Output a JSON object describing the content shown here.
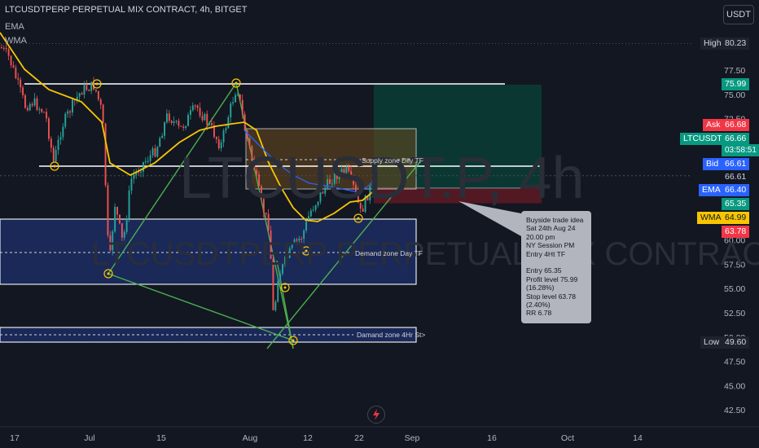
{
  "header": {
    "symbol_line": "LTCUSDTPERP PERPETUAL MIX CONTRACT, 4h, BITGET",
    "indicators": [
      "EMA",
      "WMA"
    ],
    "currency_button": "USDT"
  },
  "watermark": {
    "ticker": "LTCUSDT.P, 4h",
    "description": "LTCUSDTPERP PERPETUAL MIX CONTRACT"
  },
  "price_axis": {
    "ticks": [
      "77.50",
      "75.00",
      "72.50",
      "70.00",
      "67.50",
      "65.00",
      "62.50",
      "60.00",
      "57.50",
      "55.00",
      "52.50",
      "50.00",
      "47.50",
      "45.00",
      "42.50"
    ],
    "labels": {
      "high_label": "High",
      "high_value": "80.23",
      "target_value": "75.99",
      "ask_label": "Ask",
      "ask_value": "66.68",
      "symbol_label": "LTCUSDT.P",
      "last_value": "66.66",
      "countdown": "03:58:51",
      "bid_label": "Bid",
      "bid_value": "66.61",
      "crosshair_value": "66.61",
      "ema_label": "EMA",
      "ema_value": "66.40",
      "entry_value": "65.35",
      "wma_label": "WMA",
      "wma_value": "64.99",
      "stop_value": "63.78",
      "low_label": "Low",
      "low_value": "49.60"
    },
    "colors": {
      "ask": "#f23645",
      "last": "#089981",
      "bid": "#2962ff",
      "ema": "#2962ff",
      "wma": "#f7c600",
      "entry": "#089981",
      "stop": "#f23645",
      "target": "#089981",
      "high_low": "#1e222d"
    }
  },
  "time_axis": {
    "ticks": [
      "17",
      "Jul",
      "15",
      "Aug",
      "12",
      "22",
      "Sep",
      "16",
      "Oct",
      "14"
    ]
  },
  "zones": {
    "supply": "Supply zone Dily TF",
    "demand_day": "Demand zone Day TF",
    "demand_4h": "Damand zone 4Hr St>"
  },
  "note": {
    "lines": [
      "Buyside trade idea",
      "Sat 24th Aug 24",
      "20.00 pm",
      "NY Session PM",
      "Entry 4Ht TF",
      "",
      "Entry 65.35",
      "Profit level 75.99",
      "(16.28%)",
      "Stop level 63.78",
      "(2.40%)",
      "RR 6.78"
    ]
  },
  "chart_data": {
    "type": "candlestick",
    "symbol": "LTCUSDT.P",
    "timeframe": "4h",
    "x_ticks": [
      "17",
      "Jul",
      "15",
      "Aug",
      "12",
      "22",
      "Sep",
      "16",
      "Oct",
      "14"
    ],
    "y_ticks": [
      77.5,
      75,
      72.5,
      70,
      67.5,
      65,
      62.5,
      60,
      57.5,
      55,
      52.5,
      50,
      47.5,
      45,
      42.5
    ],
    "ylim": [
      41.5,
      83
    ],
    "high": 80.23,
    "low": 49.6,
    "last": 66.66,
    "ema": 66.4,
    "wma": 64.99,
    "entry": 65.35,
    "target": 75.99,
    "stop": 63.78,
    "grid": false
  }
}
